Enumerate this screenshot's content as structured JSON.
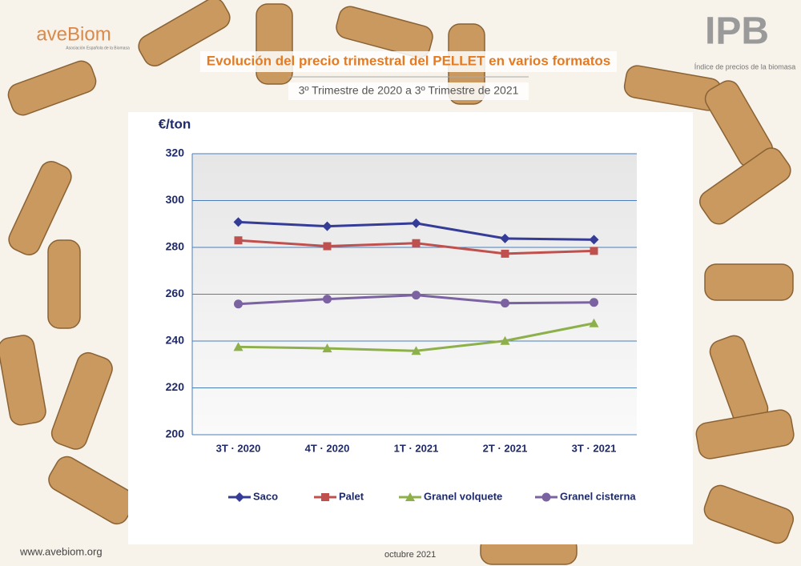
{
  "branding": {
    "left_logo": "aveBiom",
    "left_logo_sub": "Asociación Española de la Biomasa",
    "right_logo": "IPB",
    "right_logo_sub": "Índice de precios de la biomasa",
    "website": "www.avebiom.org",
    "date": "octubre 2021"
  },
  "chart_data": {
    "type": "line",
    "title": "Evolución del precio trimestral del PELLET en varios formatos",
    "subtitle": "3º Trimestre de 2020 a 3º Trimestre de 2021",
    "y_label": "€/ton",
    "categories": [
      "3T · 2020",
      "4T · 2020",
      "1T · 2021",
      "2T · 2021",
      "3T · 2021"
    ],
    "series": [
      {
        "name": "Saco",
        "color": "#353c98",
        "marker": "diamond",
        "values": [
          290.8,
          289.0,
          290.3,
          283.8,
          283.3
        ]
      },
      {
        "name": "Palet",
        "color": "#c0504d",
        "marker": "square",
        "values": [
          283.0,
          280.5,
          281.8,
          277.3,
          278.5
        ]
      },
      {
        "name": "Granel volquete",
        "color": "#8db04a",
        "marker": "triangle",
        "values": [
          237.5,
          236.9,
          235.8,
          240.1,
          247.6
        ]
      },
      {
        "name": "Granel cisterna",
        "color": "#7b62a0",
        "marker": "circle",
        "values": [
          255.8,
          257.9,
          259.6,
          256.2,
          256.5
        ]
      }
    ],
    "ylim": [
      200,
      320
    ],
    "yticks": [
      200,
      220,
      240,
      260,
      280,
      300,
      320
    ],
    "grid": true,
    "legend": "bottom"
  }
}
